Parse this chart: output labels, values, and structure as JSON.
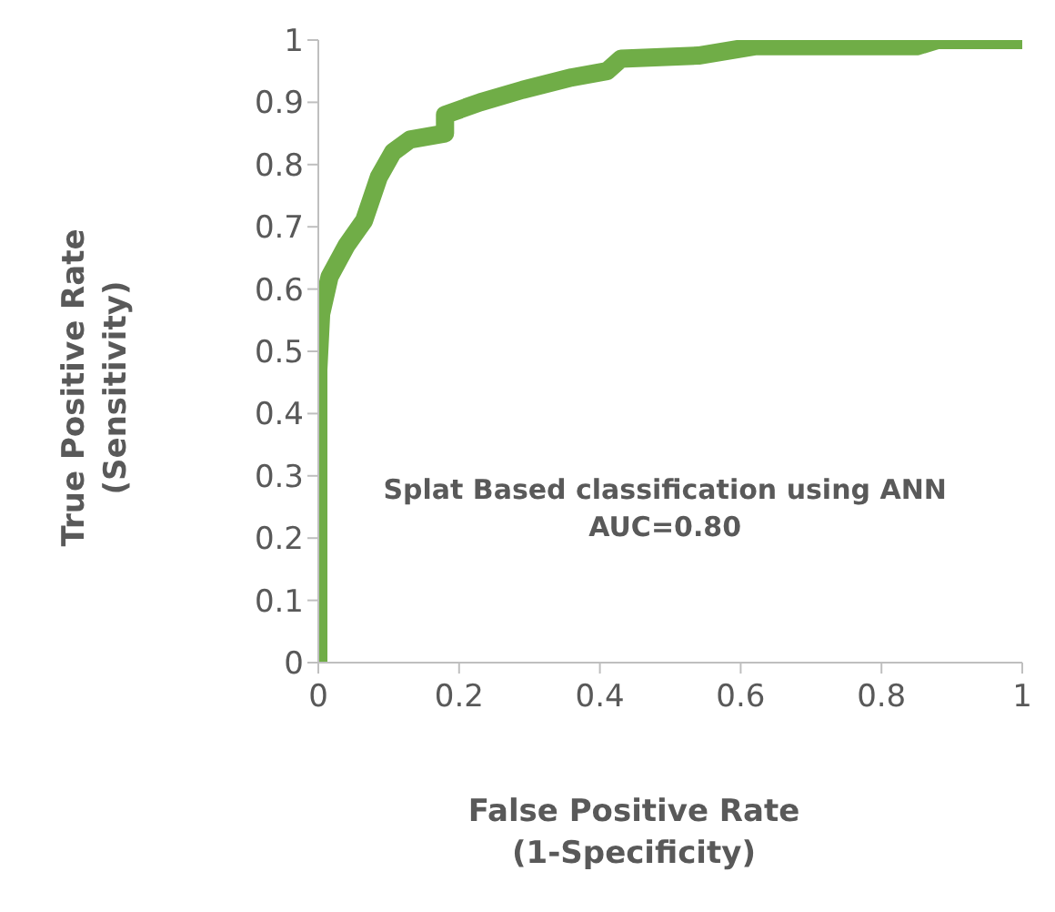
{
  "chart_data": {
    "type": "line",
    "xlabel": "False Positive Rate\n(1-Specificity)",
    "ylabel": "True Positive Rate\n(Sensitivity)",
    "annotations": [
      "Splat Based classification using ANN\nAUC=0.80"
    ],
    "series": [
      {
        "color": "#70ad47",
        "x": [
          0,
          0,
          0.004,
          0.016,
          0.04,
          0.065,
          0.086,
          0.106,
          0.13,
          0.18,
          0.18,
          0.23,
          0.29,
          0.36,
          0.41,
          0.43,
          0.54,
          0.62,
          0.85,
          0.88,
          1
        ],
        "values": [
          0,
          0.47,
          0.56,
          0.62,
          0.67,
          0.71,
          0.78,
          0.82,
          0.84,
          0.85,
          0.88,
          0.9,
          0.92,
          0.94,
          0.95,
          0.97,
          0.975,
          0.99,
          0.99,
          1,
          1
        ]
      }
    ],
    "xlim": [
      0,
      1
    ],
    "xticks": [
      0,
      0.2,
      0.4,
      0.6,
      0.8,
      1
    ],
    "ylim": [
      0,
      1
    ],
    "yticks": [
      0,
      0.1,
      0.2,
      0.3,
      0.4,
      0.5,
      0.6,
      0.7,
      0.8,
      0.9,
      1
    ],
    "grid": false,
    "legend": false,
    "marker": "none",
    "line_style": "solid"
  }
}
